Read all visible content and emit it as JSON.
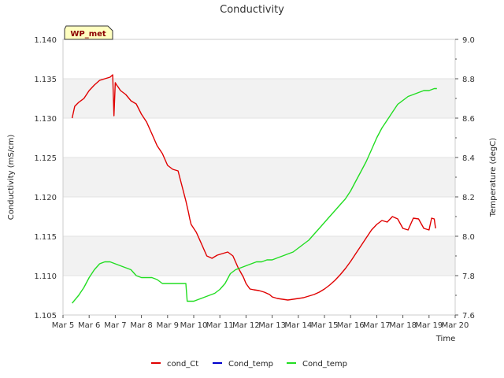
{
  "chart_data": {
    "type": "line",
    "title": "Conductivity",
    "station_label": "WP_met",
    "xlabel": "Time",
    "ylabel_left": "Conductivity (mS/cm)",
    "ylabel_right": "Temperature (degC)",
    "x_range": [
      5,
      20
    ],
    "x_ticks": [
      {
        "value": 5,
        "label": "Mar 5"
      },
      {
        "value": 6,
        "label": "Mar 6"
      },
      {
        "value": 7,
        "label": "Mar 7"
      },
      {
        "value": 8,
        "label": "Mar 8"
      },
      {
        "value": 9,
        "label": "Mar 9"
      },
      {
        "value": 10,
        "label": "Mar 10"
      },
      {
        "value": 11,
        "label": "Mar 11"
      },
      {
        "value": 12,
        "label": "Mar 12"
      },
      {
        "value": 13,
        "label": "Mar 13"
      },
      {
        "value": 14,
        "label": "Mar 14"
      },
      {
        "value": 15,
        "label": "Mar 15"
      },
      {
        "value": 16,
        "label": "Mar 16"
      },
      {
        "value": 17,
        "label": "Mar 17"
      },
      {
        "value": 18,
        "label": "Mar 18"
      },
      {
        "value": 19,
        "label": "Mar 19"
      },
      {
        "value": 20,
        "label": "Mar 20"
      }
    ],
    "y_left_range": [
      1.105,
      1.14
    ],
    "y_left_ticks": [
      {
        "value": 1.105,
        "label": "1.105"
      },
      {
        "value": 1.11,
        "label": "1.110"
      },
      {
        "value": 1.115,
        "label": "1.115"
      },
      {
        "value": 1.12,
        "label": "1.120"
      },
      {
        "value": 1.125,
        "label": "1.125"
      },
      {
        "value": 1.13,
        "label": "1.130"
      },
      {
        "value": 1.135,
        "label": "1.135"
      },
      {
        "value": 1.14,
        "label": "1.140"
      }
    ],
    "y_right_range": [
      7.6,
      9.0
    ],
    "y_right_ticks": [
      {
        "value": 7.6,
        "label": "7.6"
      },
      {
        "value": 7.8,
        "label": "7.8"
      },
      {
        "value": 8.0,
        "label": "8.0"
      },
      {
        "value": 8.2,
        "label": "8.2"
      },
      {
        "value": 8.4,
        "label": "8.4"
      },
      {
        "value": 8.6,
        "label": "8.6"
      },
      {
        "value": 8.8,
        "label": "8.8"
      },
      {
        "value": 9.0,
        "label": "9.0"
      }
    ],
    "bands_left": [
      [
        1.11,
        1.115
      ],
      [
        1.12,
        1.125
      ],
      [
        1.13,
        1.135
      ]
    ],
    "legend_position": "bottom",
    "series": [
      {
        "name": "cond_Ct",
        "axis": "left",
        "color": "#e00000",
        "x": [
          5.35,
          5.45,
          5.6,
          5.8,
          6.0,
          6.2,
          6.4,
          6.6,
          6.8,
          6.9,
          6.95,
          7.0,
          7.05,
          7.1,
          7.2,
          7.4,
          7.6,
          7.8,
          8.0,
          8.2,
          8.4,
          8.6,
          8.8,
          9.0,
          9.2,
          9.4,
          9.7,
          9.8,
          9.85,
          9.9,
          10.0,
          10.1,
          10.3,
          10.5,
          10.7,
          10.9,
          11.1,
          11.3,
          11.5,
          11.7,
          11.9,
          12.0,
          12.15,
          12.3,
          12.5,
          12.7,
          12.9,
          13.0,
          13.2,
          13.4,
          13.6,
          13.8,
          14.0,
          14.2,
          14.4,
          14.6,
          14.8,
          15.0,
          15.2,
          15.4,
          15.6,
          15.8,
          16.0,
          16.2,
          16.4,
          16.6,
          16.8,
          17.0,
          17.2,
          17.4,
          17.6,
          17.8,
          18.0,
          18.2,
          18.4,
          18.6,
          18.8,
          19.0,
          19.1,
          19.2,
          19.25
        ],
        "y": [
          1.13,
          1.1315,
          1.132,
          1.1325,
          1.1335,
          1.1342,
          1.1348,
          1.135,
          1.1352,
          1.1355,
          1.1303,
          1.1345,
          1.1342,
          1.134,
          1.1335,
          1.133,
          1.1322,
          1.1318,
          1.1305,
          1.1295,
          1.128,
          1.1265,
          1.1255,
          1.124,
          1.1235,
          1.1233,
          1.1195,
          1.118,
          1.1172,
          1.1165,
          1.116,
          1.1155,
          1.114,
          1.1125,
          1.1122,
          1.1126,
          1.1128,
          1.113,
          1.1125,
          1.111,
          1.1098,
          1.109,
          1.1083,
          1.1082,
          1.1081,
          1.1079,
          1.1076,
          1.1073,
          1.1071,
          1.107,
          1.1069,
          1.107,
          1.1071,
          1.1072,
          1.1074,
          1.1076,
          1.1079,
          1.1083,
          1.1088,
          1.1094,
          1.1101,
          1.1109,
          1.1118,
          1.1128,
          1.1138,
          1.1148,
          1.1158,
          1.1165,
          1.117,
          1.1168,
          1.1175,
          1.1172,
          1.116,
          1.1158,
          1.1173,
          1.1172,
          1.116,
          1.1158,
          1.1173,
          1.1172,
          1.116
        ]
      },
      {
        "name": "Cond_temp",
        "axis": "right",
        "color": "#0000cc",
        "x": [],
        "y": []
      },
      {
        "name": "Cond_temp",
        "axis": "right",
        "color": "#22dd22",
        "x": [
          5.35,
          5.6,
          5.8,
          6.0,
          6.2,
          6.4,
          6.6,
          6.8,
          7.0,
          7.2,
          7.4,
          7.6,
          7.8,
          8.0,
          8.2,
          8.4,
          8.6,
          8.8,
          9.0,
          9.2,
          9.4,
          9.7,
          9.75,
          9.8,
          10.0,
          10.2,
          10.4,
          10.6,
          10.8,
          11.0,
          11.2,
          11.4,
          11.6,
          11.8,
          12.0,
          12.2,
          12.4,
          12.6,
          12.8,
          13.0,
          13.2,
          13.4,
          13.6,
          13.8,
          14.0,
          14.2,
          14.4,
          14.6,
          14.8,
          15.0,
          15.2,
          15.4,
          15.6,
          15.8,
          16.0,
          16.2,
          16.4,
          16.6,
          16.8,
          17.0,
          17.2,
          17.4,
          17.6,
          17.8,
          18.0,
          18.2,
          18.4,
          18.6,
          18.8,
          19.0,
          19.2,
          19.3
        ],
        "y": [
          7.66,
          7.7,
          7.74,
          7.79,
          7.83,
          7.86,
          7.87,
          7.87,
          7.86,
          7.85,
          7.84,
          7.83,
          7.8,
          7.79,
          7.79,
          7.79,
          7.78,
          7.76,
          7.76,
          7.76,
          7.76,
          7.76,
          7.67,
          7.67,
          7.67,
          7.68,
          7.69,
          7.7,
          7.71,
          7.73,
          7.76,
          7.81,
          7.83,
          7.84,
          7.85,
          7.86,
          7.87,
          7.87,
          7.88,
          7.88,
          7.89,
          7.9,
          7.91,
          7.92,
          7.94,
          7.96,
          7.98,
          8.01,
          8.04,
          8.07,
          8.1,
          8.13,
          8.16,
          8.19,
          8.23,
          8.28,
          8.33,
          8.38,
          8.44,
          8.5,
          8.55,
          8.59,
          8.63,
          8.67,
          8.69,
          8.71,
          8.72,
          8.73,
          8.74,
          8.74,
          8.75,
          8.75
        ]
      }
    ]
  }
}
